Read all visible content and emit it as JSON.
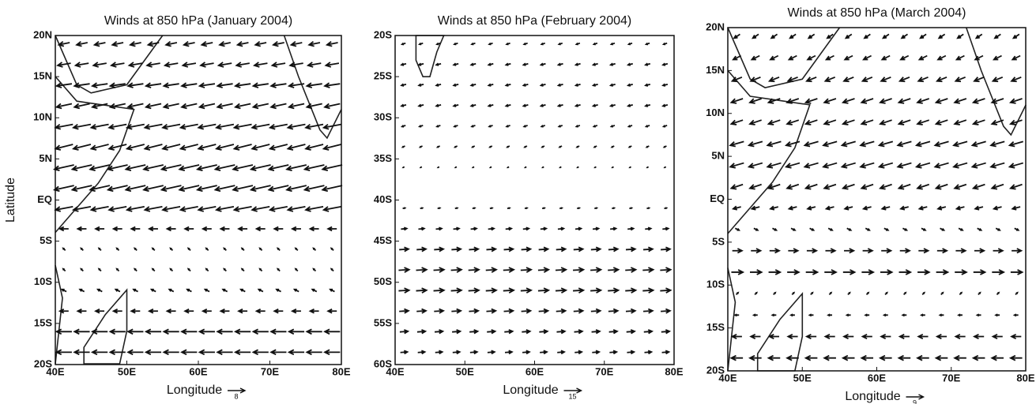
{
  "chart_data": [
    {
      "type": "quiver",
      "title": "Winds at 850 hPa (January 2004)",
      "xlabel": "Longitude",
      "ylabel": "Latitude",
      "ref": 8,
      "xlim": [
        40,
        80
      ],
      "ylim": [
        -20,
        20
      ],
      "xticks": [
        {
          "value": 40,
          "label": "40E"
        },
        {
          "value": 50,
          "label": "50E"
        },
        {
          "value": 60,
          "label": "60E"
        },
        {
          "value": 70,
          "label": "70E"
        },
        {
          "value": 80,
          "label": "80E"
        }
      ],
      "yticks": [
        {
          "value": 20,
          "label": "20N"
        },
        {
          "value": 15,
          "label": "15N"
        },
        {
          "value": 10,
          "label": "10N"
        },
        {
          "value": 5,
          "label": "5N"
        },
        {
          "value": 0,
          "label": "EQ"
        },
        {
          "value": -5,
          "label": "5S"
        },
        {
          "value": -10,
          "label": "10S"
        },
        {
          "value": -15,
          "label": "15S"
        },
        {
          "value": -20,
          "label": "20S"
        }
      ],
      "wind": {
        "lat": [
          19,
          16.5,
          14,
          11.5,
          9,
          6.5,
          4,
          1.5,
          -1,
          -3.5,
          -6,
          -8.5,
          -11,
          -13.5,
          -16,
          -18.5
        ],
        "u": [
          -5,
          -6,
          -7,
          -7,
          -8,
          -8,
          -9,
          -9,
          -8,
          -4,
          -1,
          -1,
          -2,
          -4,
          -7,
          -7
        ],
        "v": [
          -1,
          -1,
          -1,
          -1.5,
          -1.5,
          -2,
          -2,
          -2,
          -1.5,
          0,
          1,
          1,
          1,
          0,
          0,
          0
        ]
      }
    },
    {
      "type": "quiver",
      "title": "Winds at 850 hPa (February 2004)",
      "xlabel": "Longitude",
      "ref": 15,
      "xlim": [
        40,
        80
      ],
      "ylim": [
        -60,
        -20
      ],
      "xticks": [
        {
          "value": 40,
          "label": "40E"
        },
        {
          "value": 50,
          "label": "50E"
        },
        {
          "value": 60,
          "label": "60E"
        },
        {
          "value": 70,
          "label": "70E"
        },
        {
          "value": 80,
          "label": "80E"
        }
      ],
      "yticks": [
        {
          "value": -20,
          "label": "20S"
        },
        {
          "value": -25,
          "label": "25S"
        },
        {
          "value": -30,
          "label": "30S"
        },
        {
          "value": -35,
          "label": "35S"
        },
        {
          "value": -40,
          "label": "40S"
        },
        {
          "value": -45,
          "label": "45S"
        },
        {
          "value": -50,
          "label": "50S"
        },
        {
          "value": -55,
          "label": "55S"
        },
        {
          "value": -60,
          "label": "60S"
        }
      ],
      "wind": {
        "lat": [
          -21,
          -23.5,
          -26,
          -28.5,
          -31,
          -33.5,
          -36,
          -38.5,
          -41,
          -43.5,
          -46,
          -48.5,
          -51,
          -53.5,
          -56,
          -58.5
        ],
        "u": [
          -3,
          -4,
          -4,
          -4,
          -3,
          -2,
          -1,
          0,
          2,
          5,
          8,
          9,
          9,
          8,
          7,
          6
        ],
        "v": [
          -1,
          -1,
          -1,
          -1,
          -1,
          -1,
          -0.5,
          0,
          0.5,
          0.5,
          0.5,
          0.5,
          0.5,
          0.5,
          0.5,
          0.5
        ]
      }
    },
    {
      "type": "quiver",
      "title": "Winds at 850 hPa (March 2004)",
      "xlabel": "Longitude",
      "ref": 9,
      "xlim": [
        40,
        80
      ],
      "ylim": [
        -20,
        20
      ],
      "xticks": [
        {
          "value": 40,
          "label": "40E"
        },
        {
          "value": 50,
          "label": "50E"
        },
        {
          "value": 60,
          "label": "60E"
        },
        {
          "value": 70,
          "label": "70E"
        },
        {
          "value": 80,
          "label": "80E"
        }
      ],
      "yticks": [
        {
          "value": 20,
          "label": "20N"
        },
        {
          "value": 15,
          "label": "15N"
        },
        {
          "value": 10,
          "label": "10N"
        },
        {
          "value": 5,
          "label": "5N"
        },
        {
          "value": 0,
          "label": "EQ"
        },
        {
          "value": -5,
          "label": "5S"
        },
        {
          "value": -10,
          "label": "10S"
        },
        {
          "value": -15,
          "label": "15S"
        },
        {
          "value": -20,
          "label": "20S"
        }
      ],
      "wind": {
        "lat": [
          19,
          16.5,
          14,
          11.5,
          9,
          6.5,
          4,
          1.5,
          -1,
          -3.5,
          -6,
          -8.5,
          -11,
          -13.5,
          -16,
          -18.5
        ],
        "u": [
          -3,
          -4,
          -5,
          -6,
          -6,
          -7,
          -7,
          -6,
          -4,
          2,
          5,
          6,
          1,
          -2,
          -5,
          -6
        ],
        "v": [
          -2,
          -2,
          -2,
          -2,
          -2,
          -2,
          -2,
          -2,
          -1,
          -1,
          0,
          0,
          1,
          0,
          0,
          0
        ]
      }
    }
  ]
}
